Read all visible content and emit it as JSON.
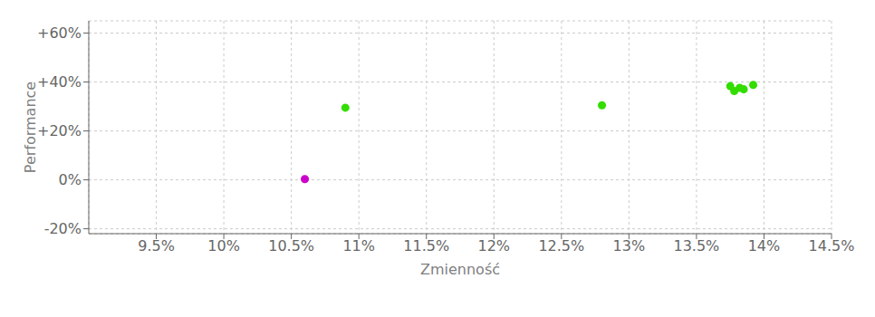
{
  "chart_data": {
    "type": "scatter",
    "xlabel": "Zmienność",
    "ylabel": "Performance",
    "xlim": [
      0.09,
      0.145
    ],
    "ylim": [
      -0.22,
      0.65
    ],
    "xticks": [
      {
        "value": 0.095,
        "label": "9.5%"
      },
      {
        "value": 0.1,
        "label": "10%"
      },
      {
        "value": 0.105,
        "label": "10.5%"
      },
      {
        "value": 0.11,
        "label": "11%"
      },
      {
        "value": 0.115,
        "label": "11.5%"
      },
      {
        "value": 0.12,
        "label": "12%"
      },
      {
        "value": 0.125,
        "label": "12.5%"
      },
      {
        "value": 0.13,
        "label": "13%"
      },
      {
        "value": 0.135,
        "label": "13.5%"
      },
      {
        "value": 0.14,
        "label": "14%"
      },
      {
        "value": 0.145,
        "label": "14.5%"
      }
    ],
    "yticks": [
      {
        "value": -0.2,
        "label": "-20%"
      },
      {
        "value": 0.0,
        "label": "0%"
      },
      {
        "value": 0.2,
        "label": "+20%"
      },
      {
        "value": 0.4,
        "label": "+40%"
      },
      {
        "value": 0.6,
        "label": "+60%"
      }
    ],
    "grid": true,
    "series": [
      {
        "color": "#33dd00",
        "x": [
          0.109,
          0.128,
          0.1375,
          0.1382,
          0.1392,
          0.1378,
          0.1385
        ],
        "values": [
          0.295,
          0.305,
          0.383,
          0.376,
          0.388,
          0.363,
          0.37
        ]
      },
      {
        "color": "#cc00cc",
        "x": [
          0.106
        ],
        "values": [
          0.003
        ]
      }
    ]
  }
}
